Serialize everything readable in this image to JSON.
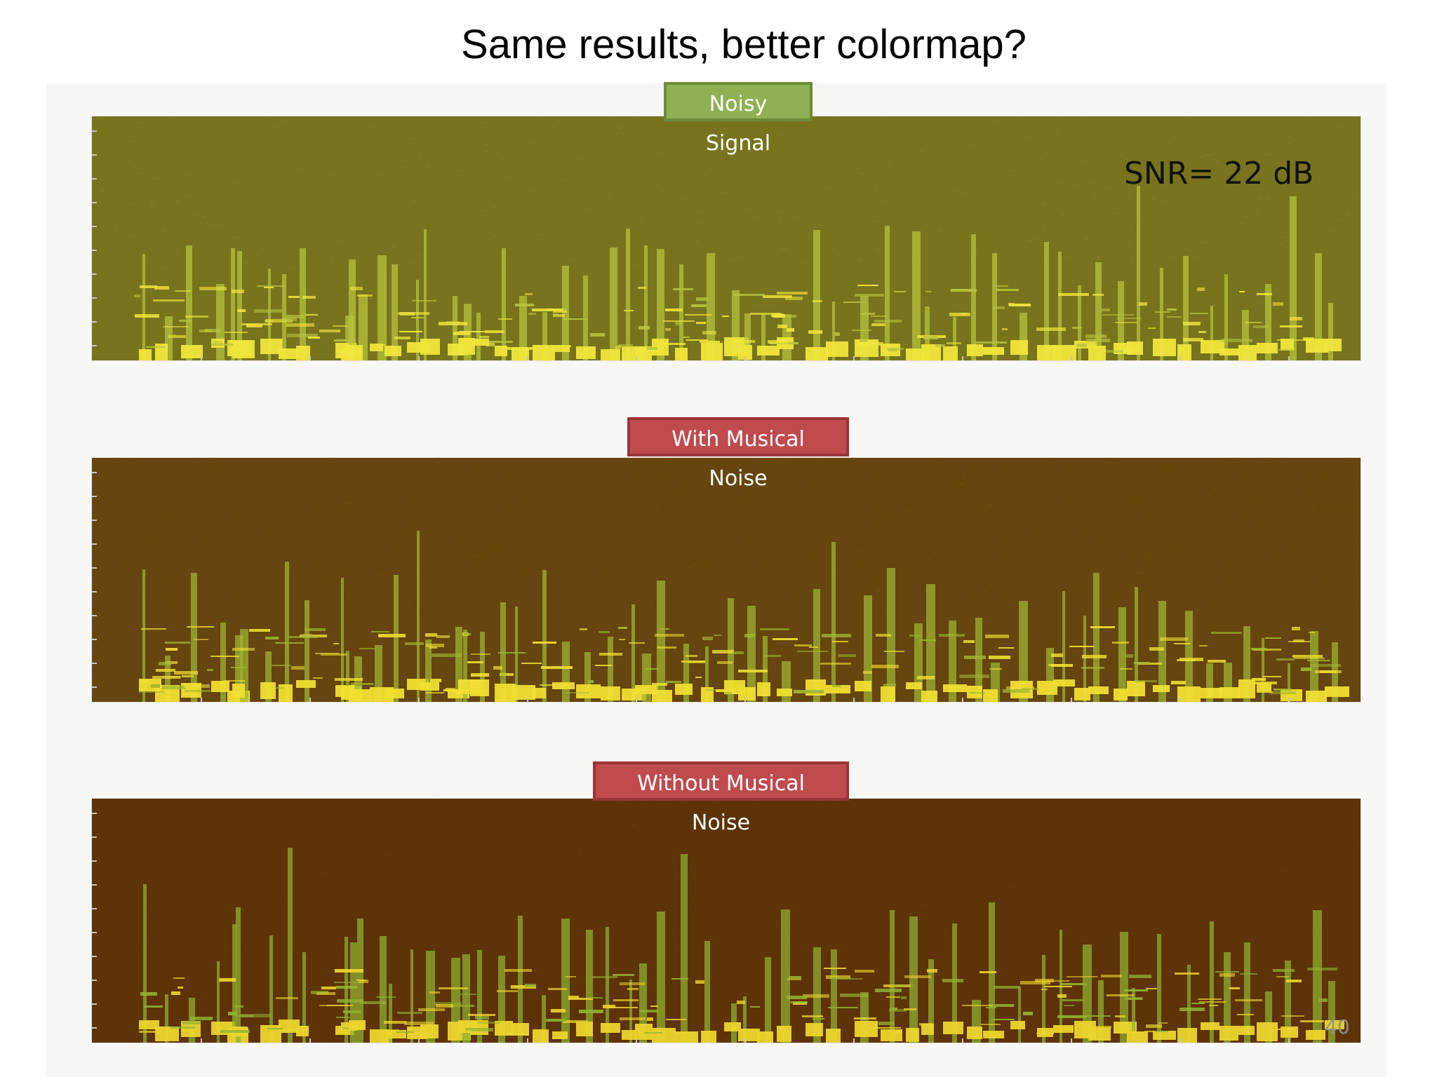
{
  "slide": {
    "title": "Same results, better colormap?",
    "snr_label": "SNR= 22 dB",
    "page_number": "40"
  },
  "panels": [
    {
      "id": "noisy",
      "label": "Noisy Signal",
      "label_color": "#8fb153",
      "background": "#77741d",
      "blob_color": "#b9c53d",
      "bright_color": "#f0e63b"
    },
    {
      "id": "with_musical_noise",
      "label": "With Musical Noise",
      "label_color": "#bf4b4c",
      "background": "#66450f",
      "blob_color": "#9fb732",
      "bright_color": "#f0df32"
    },
    {
      "id": "without_musical_noise",
      "label": "Without Musical Noise",
      "label_color": "#bf4b4c",
      "background": "#5e3308",
      "blob_color": "#90b331",
      "bright_color": "#ebd52d"
    }
  ]
}
